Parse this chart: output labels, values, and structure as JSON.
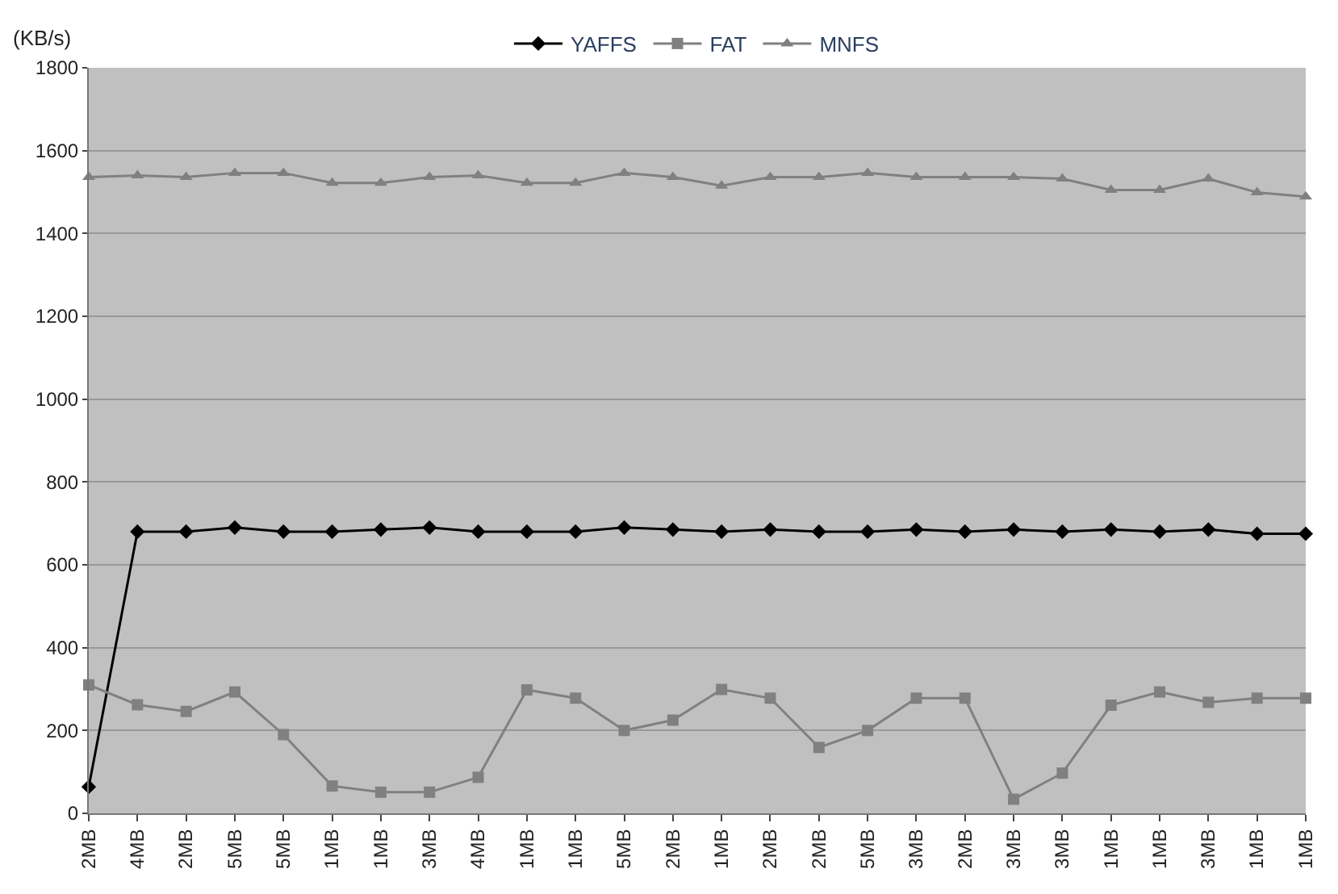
{
  "chart_data": {
    "type": "line",
    "ylabel": "(KB/s)",
    "categories": [
      "2MB",
      "4MB",
      "2MB",
      "5MB",
      "5MB",
      "1MB",
      "1MB",
      "3MB",
      "4MB",
      "1MB",
      "1MB",
      "5MB",
      "2MB",
      "1MB",
      "2MB",
      "2MB",
      "5MB",
      "3MB",
      "2MB",
      "3MB",
      "3MB",
      "1MB",
      "1MB",
      "3MB",
      "1MB",
      "1MB"
    ],
    "series": [
      {
        "name": "YAFFS",
        "color": "#000000",
        "marker": "diamond",
        "values": [
          64,
          680,
          680,
          690,
          680,
          680,
          685,
          690,
          680,
          680,
          680,
          690,
          685,
          680,
          685,
          680,
          680,
          685,
          680,
          685,
          680,
          685,
          680,
          685,
          675,
          675
        ]
      },
      {
        "name": "FAT",
        "color": "#808080",
        "marker": "square",
        "values": [
          310,
          262,
          246,
          293,
          190,
          66,
          51,
          51,
          87,
          298,
          278,
          200,
          225,
          299,
          278,
          159,
          200,
          278,
          278,
          34,
          97,
          261,
          293,
          268,
          278,
          278
        ]
      },
      {
        "name": "MNFS",
        "color": "#808080",
        "marker": "triangle",
        "values": [
          1536,
          1540,
          1536,
          1546,
          1546,
          1522,
          1522,
          1536,
          1540,
          1522,
          1522,
          1546,
          1536,
          1515,
          1536,
          1536,
          1546,
          1536,
          1536,
          1536,
          1532,
          1505,
          1505,
          1532,
          1499,
          1489
        ]
      }
    ],
    "ylim": [
      0,
      1800
    ],
    "yticks": [
      0,
      200,
      400,
      600,
      800,
      1000,
      1200,
      1400,
      1600,
      1800
    ],
    "grid": "y",
    "legend": "top",
    "line_style": "solid"
  }
}
